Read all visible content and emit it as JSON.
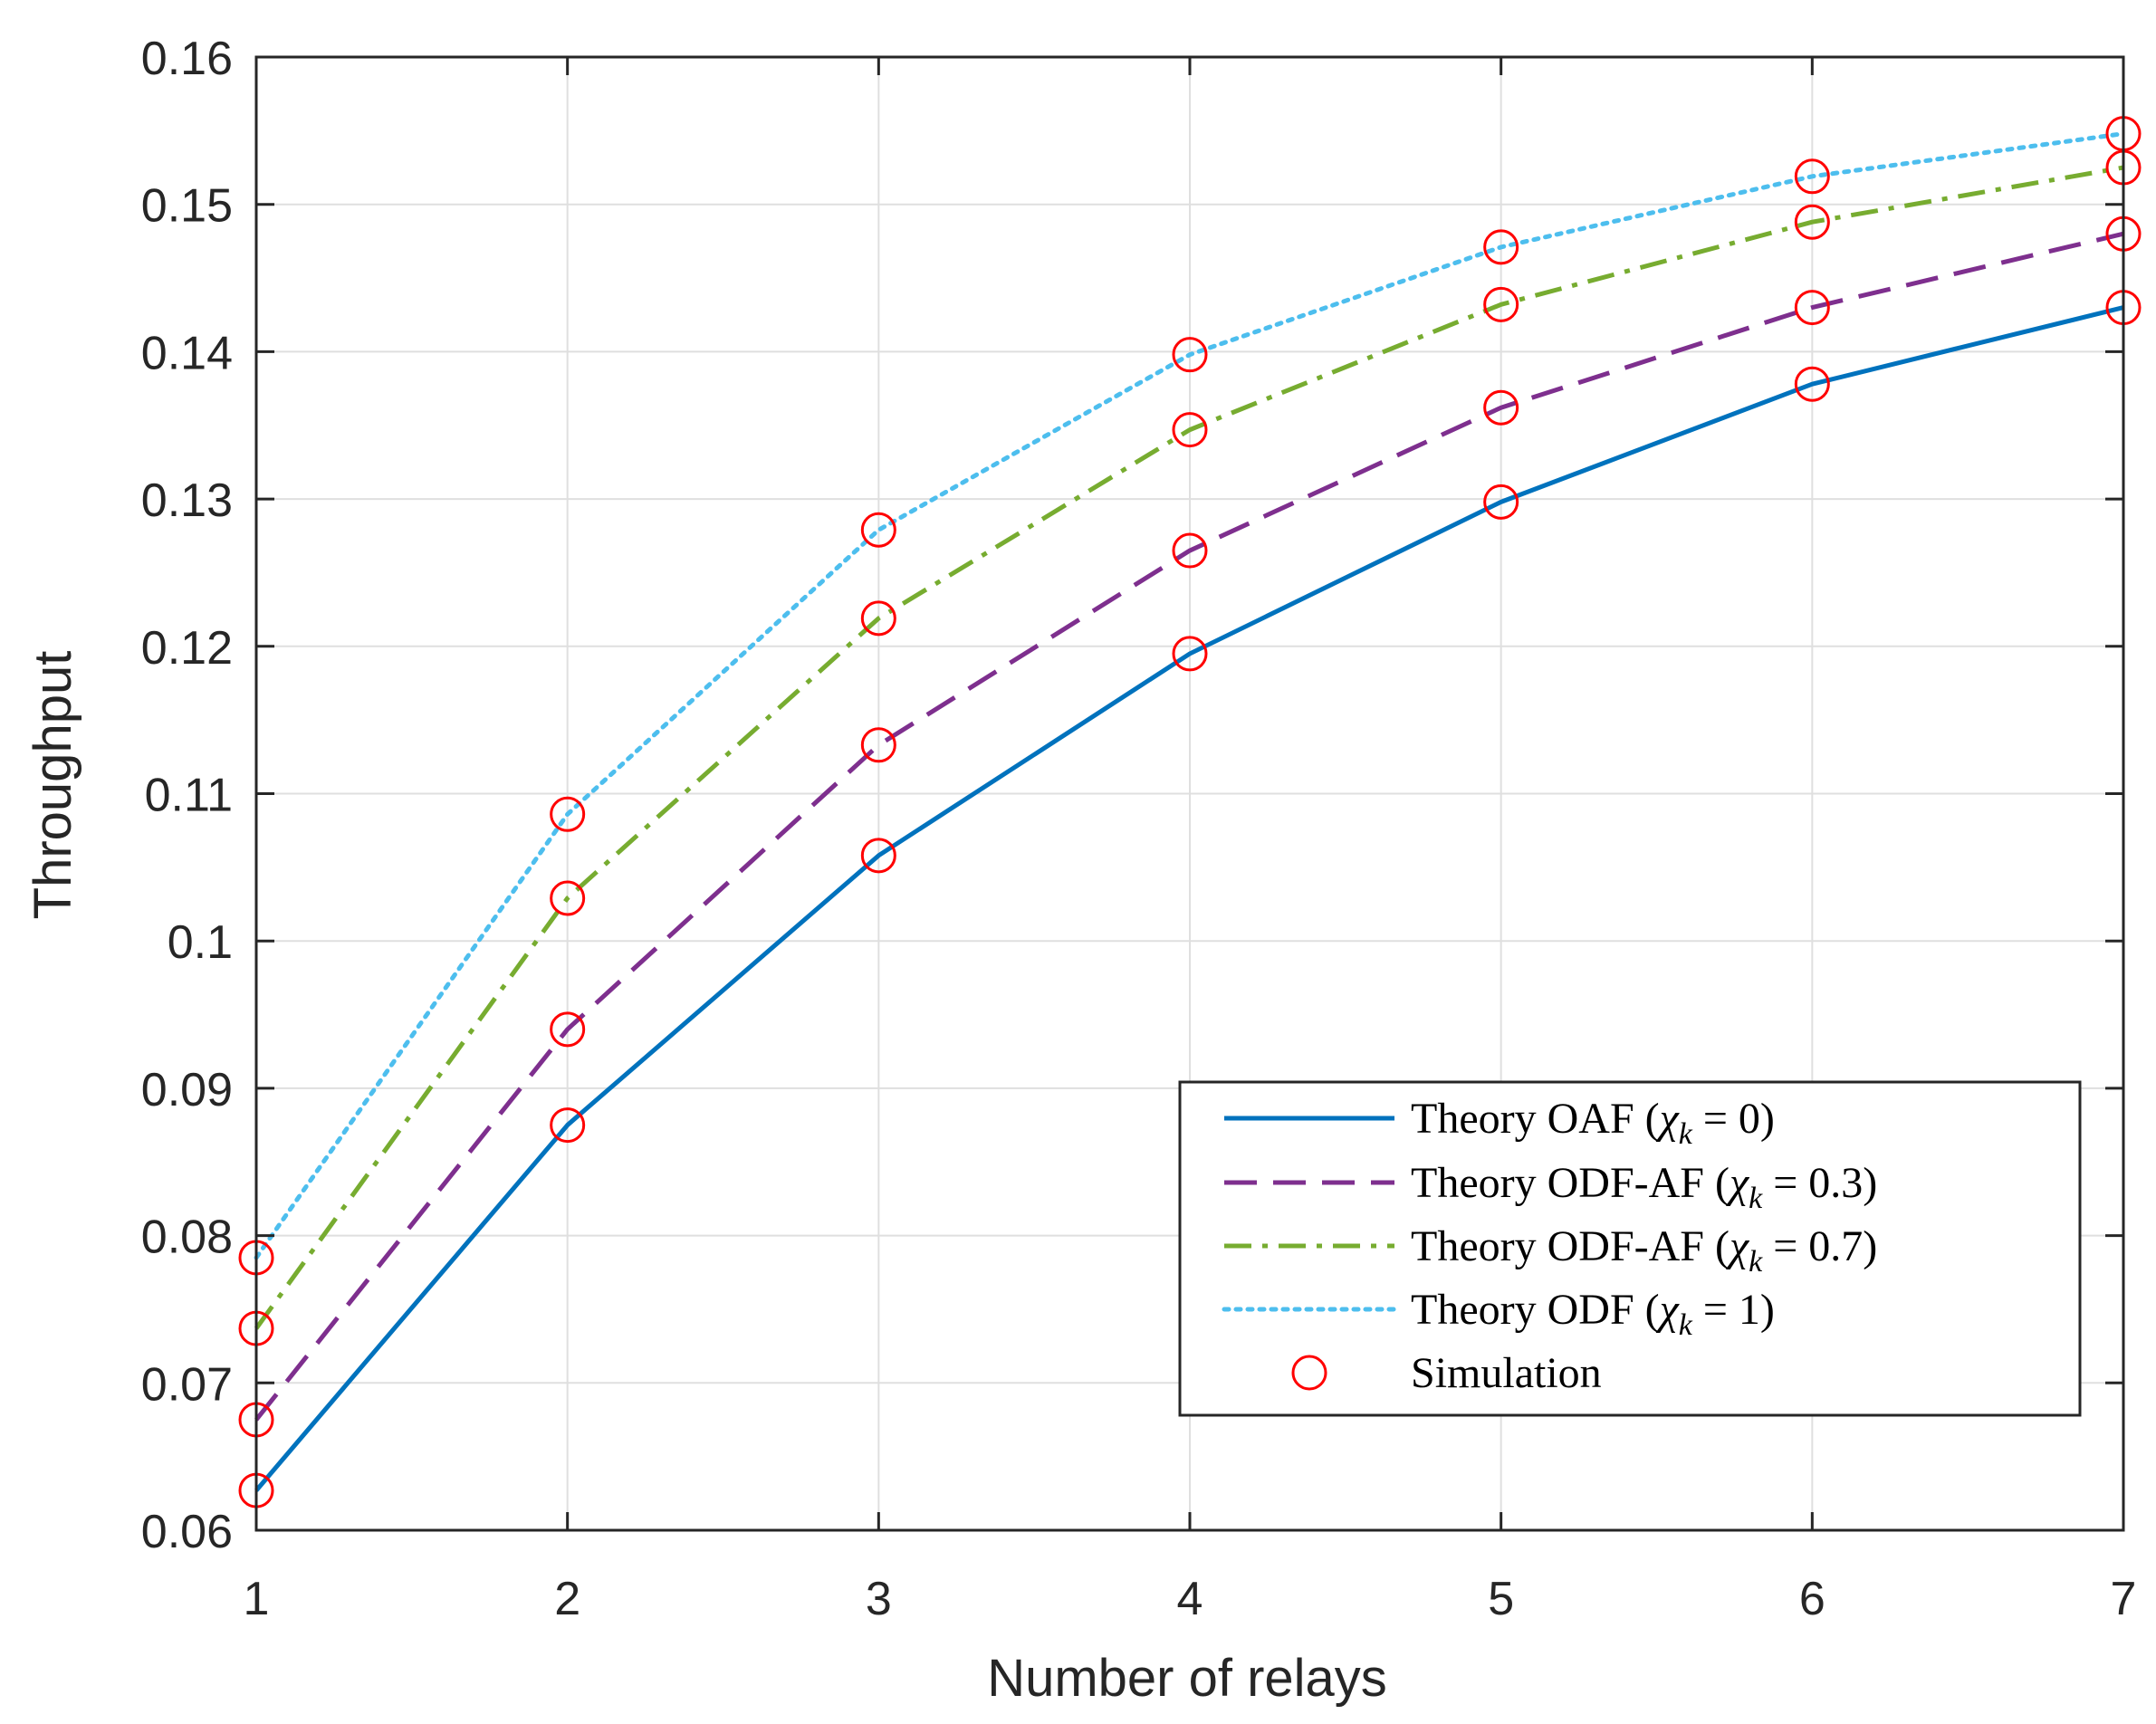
{
  "chart_data": {
    "type": "line",
    "title": "",
    "xlabel": "Number of relays",
    "ylabel": "Throughput",
    "x": [
      1,
      2,
      3,
      4,
      5,
      6,
      7
    ],
    "xlim": [
      1,
      7
    ],
    "ylim": [
      0.06,
      0.16
    ],
    "xticks": [
      "1",
      "2",
      "3",
      "4",
      "5",
      "6",
      "7"
    ],
    "yticks": [
      "0.06",
      "0.07",
      "0.08",
      "0.09",
      "0.1",
      "0.11",
      "0.12",
      "0.13",
      "0.14",
      "0.15",
      "0.16"
    ],
    "grid": true,
    "legend_position": "lower-right",
    "series": [
      {
        "name": "Theory OAF (χk = 0)",
        "color": "#0072BD",
        "dash": "solid",
        "values": [
          0.0627,
          0.0875,
          0.1058,
          0.1195,
          0.1298,
          0.1378,
          0.143
        ]
      },
      {
        "name": "Theory ODF-AF (χk = 0.3)",
        "color": "#7E2F8E",
        "dash": "dashed",
        "values": [
          0.0675,
          0.094,
          0.1133,
          0.1265,
          0.1362,
          0.143,
          0.148
        ]
      },
      {
        "name": "Theory ODF-AF (χk = 0.7)",
        "color": "#77AC30",
        "dash": "dashdot",
        "values": [
          0.0737,
          0.1029,
          0.1219,
          0.1347,
          0.1432,
          0.1488,
          0.1525
        ]
      },
      {
        "name": "Theory ODF (χk = 1)",
        "color": "#4DBEEE",
        "dash": "dotted",
        "values": [
          0.0785,
          0.1086,
          0.1279,
          0.1398,
          0.1471,
          0.1519,
          0.1548
        ]
      }
    ],
    "simulation": {
      "name": "Simulation",
      "color": "#FF0000",
      "marker": "circle",
      "series_values": [
        [
          0.0627,
          0.0875,
          0.1058,
          0.1195,
          0.1298,
          0.1378,
          0.143
        ],
        [
          0.0675,
          0.094,
          0.1133,
          0.1265,
          0.1362,
          0.143,
          0.148
        ],
        [
          0.0737,
          0.1029,
          0.1219,
          0.1347,
          0.1432,
          0.1488,
          0.1525
        ],
        [
          0.0785,
          0.1086,
          0.1279,
          0.1398,
          0.1471,
          0.1519,
          0.1548
        ]
      ]
    },
    "legend": [
      {
        "prefix": "Theory OAF (",
        "var": "χ",
        "sub": "k",
        "suffix": " = 0)"
      },
      {
        "prefix": "Theory ODF-AF (",
        "var": "χ",
        "sub": "k",
        "suffix": " = 0.3)"
      },
      {
        "prefix": "Theory ODF-AF (",
        "var": "χ",
        "sub": "k",
        "suffix": " = 0.7)"
      },
      {
        "prefix": "Theory ODF (",
        "var": "χ",
        "sub": "k",
        "suffix": " = 1)"
      },
      {
        "prefix": "Simulation",
        "var": "",
        "sub": "",
        "suffix": ""
      }
    ]
  }
}
